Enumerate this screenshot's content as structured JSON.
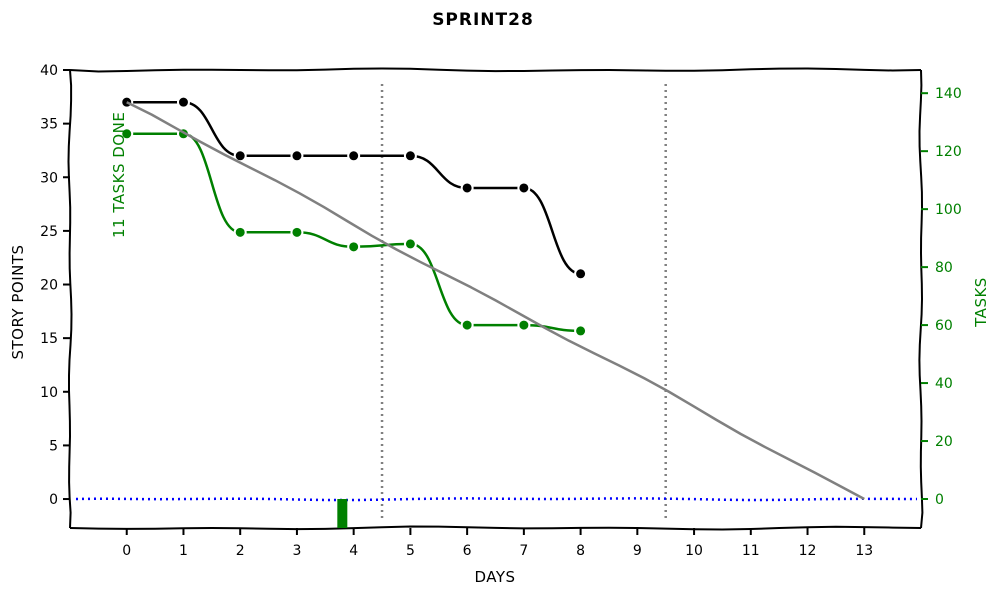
{
  "chart_data": {
    "type": "line",
    "title": "SPRINT28",
    "xlabel": "DAYS",
    "ylabel": "STORY POINTS",
    "y2label": "TASKS",
    "x_ticks": [
      0,
      1,
      2,
      3,
      4,
      5,
      6,
      7,
      8,
      9,
      10,
      11,
      12,
      13
    ],
    "xlim": [
      -1,
      14
    ],
    "ylim": [
      -2.7,
      40
    ],
    "y2lim": [
      -10,
      148
    ],
    "y_ticks": [
      0,
      5,
      10,
      15,
      20,
      25,
      30,
      35,
      40
    ],
    "y2_ticks": [
      0,
      20,
      40,
      60,
      80,
      100,
      120,
      140
    ],
    "annotation": "11 TASKS DONE",
    "grid": false,
    "series": [
      {
        "axis": "left",
        "color": "#000000",
        "marker": true,
        "x": [
          0,
          1,
          2,
          3,
          4,
          5,
          6,
          7,
          8
        ],
        "values": [
          37,
          37,
          32,
          32,
          32,
          32,
          29,
          29,
          21
        ]
      },
      {
        "axis": "right",
        "color": "#008000",
        "marker": true,
        "x": [
          0,
          1,
          2,
          3,
          4,
          5,
          6,
          7,
          8
        ],
        "values": [
          126,
          126,
          92,
          92,
          87,
          88,
          60,
          60,
          58
        ]
      },
      {
        "axis": "left",
        "color": "#808080",
        "marker": false,
        "x": [
          0,
          13
        ],
        "values": [
          37,
          0
        ]
      }
    ],
    "zero_line": {
      "axis": "left",
      "value": 0,
      "color": "#0000ff",
      "style": "dotted"
    },
    "vertical_lines": {
      "x": [
        4.5,
        9.5
      ],
      "color": "#808080",
      "style": "dotted"
    },
    "bars": [
      {
        "axis": "right",
        "x": 3.8,
        "value": -10,
        "color": "#008000"
      }
    ]
  }
}
